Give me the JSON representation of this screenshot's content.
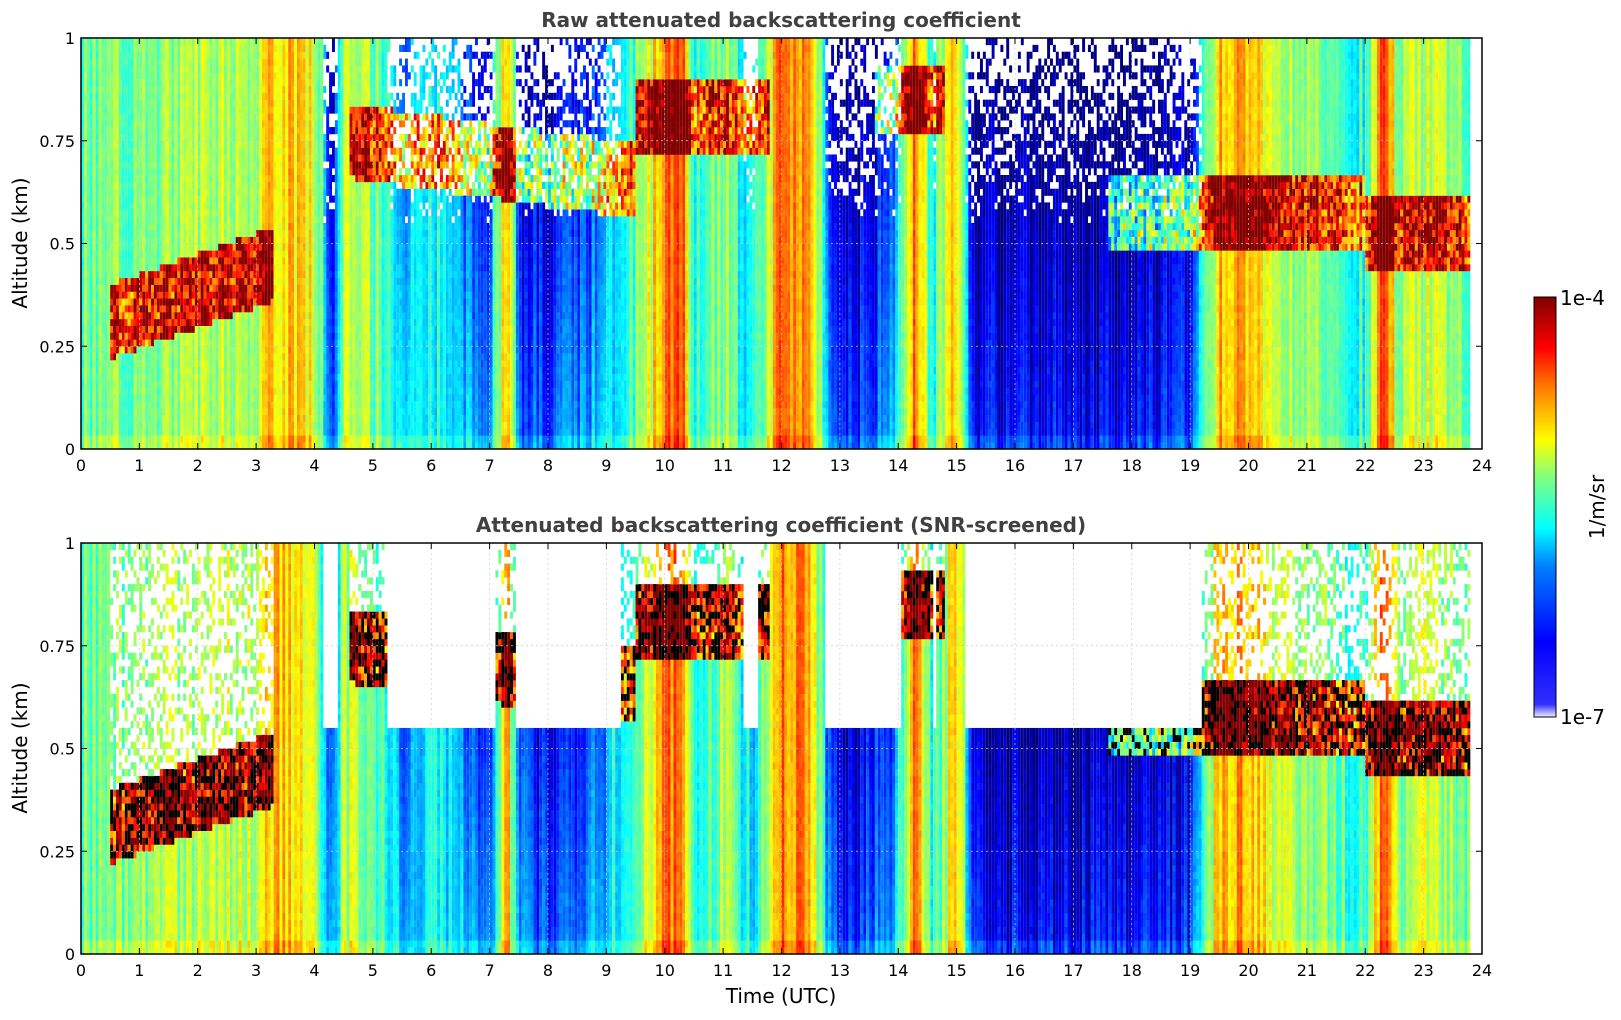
{
  "chart_data": [
    {
      "type": "heatmap",
      "title": "Raw attenuated backscattering coefficient",
      "xlabel": "",
      "ylabel": "Altitude (km)",
      "xlim": [
        0,
        24
      ],
      "ylim": [
        0,
        1
      ],
      "xticks": [
        "0",
        "1",
        "2",
        "3",
        "4",
        "5",
        "6",
        "7",
        "8",
        "9",
        "10",
        "11",
        "12",
        "13",
        "14",
        "15",
        "16",
        "17",
        "18",
        "19",
        "20",
        "21",
        "22",
        "23",
        "24"
      ],
      "yticks": [
        "0",
        "0.25",
        "0.5",
        "0.75",
        "1"
      ],
      "grid": true,
      "colormap": "jet",
      "screened": false
    },
    {
      "type": "heatmap",
      "title": "Attenuated backscattering coefficient (SNR-screened)",
      "xlabel": "Time (UTC)",
      "ylabel": "Altitude (km)",
      "xlim": [
        0,
        24
      ],
      "ylim": [
        0,
        1
      ],
      "xticks": [
        "0",
        "1",
        "2",
        "3",
        "4",
        "5",
        "6",
        "7",
        "8",
        "9",
        "10",
        "11",
        "12",
        "13",
        "14",
        "15",
        "16",
        "17",
        "18",
        "19",
        "20",
        "21",
        "22",
        "23",
        "24"
      ],
      "yticks": [
        "0",
        "0.25",
        "0.5",
        "0.75",
        "1"
      ],
      "grid": true,
      "colormap": "jet",
      "screened": true
    }
  ],
  "colorbar": {
    "label": "1/m/sr",
    "max_label": "1e-4",
    "min_label": "1e-7",
    "scale": "log",
    "colors": [
      "#00007f",
      "#0000ff",
      "#0080ff",
      "#00ffff",
      "#80ff80",
      "#ffff00",
      "#ff8000",
      "#ff0000",
      "#7f0000"
    ]
  },
  "data_profile": {
    "time_h": [
      0.0,
      0.5,
      1.0,
      1.5,
      2.0,
      2.5,
      3.0,
      3.2,
      3.5,
      4.0,
      4.3,
      4.5,
      5.0,
      5.5,
      6.0,
      6.5,
      7.0,
      7.3,
      7.5,
      8.0,
      8.5,
      9.0,
      9.5,
      10.0,
      10.3,
      10.5,
      11.0,
      11.5,
      12.0,
      12.5,
      12.8,
      13.0,
      13.5,
      14.0,
      14.3,
      14.6,
      15.0,
      15.3,
      16.0,
      17.0,
      18.0,
      19.0,
      19.5,
      20.0,
      20.5,
      21.0,
      21.5,
      22.0,
      22.3,
      22.6,
      23.0,
      23.5,
      23.8
    ],
    "background_log10": [
      -5.6,
      -5.5,
      -5.5,
      -5.4,
      -5.4,
      -5.3,
      -5.3,
      -4.9,
      -5.0,
      -5.1,
      -6.4,
      -5.3,
      -5.5,
      -6.1,
      -5.8,
      -6.0,
      -6.3,
      -4.8,
      -6.3,
      -6.4,
      -6.2,
      -6.0,
      -5.6,
      -4.8,
      -4.6,
      -5.8,
      -5.4,
      -6.0,
      -4.7,
      -4.9,
      -6.1,
      -6.6,
      -6.4,
      -6.0,
      -4.7,
      -5.9,
      -4.8,
      -6.6,
      -6.6,
      -6.6,
      -6.6,
      -6.5,
      -4.9,
      -4.9,
      -5.3,
      -5.4,
      -5.6,
      -5.8,
      -4.6,
      -5.5,
      -5.3,
      -5.4,
      -5.6
    ]
  }
}
